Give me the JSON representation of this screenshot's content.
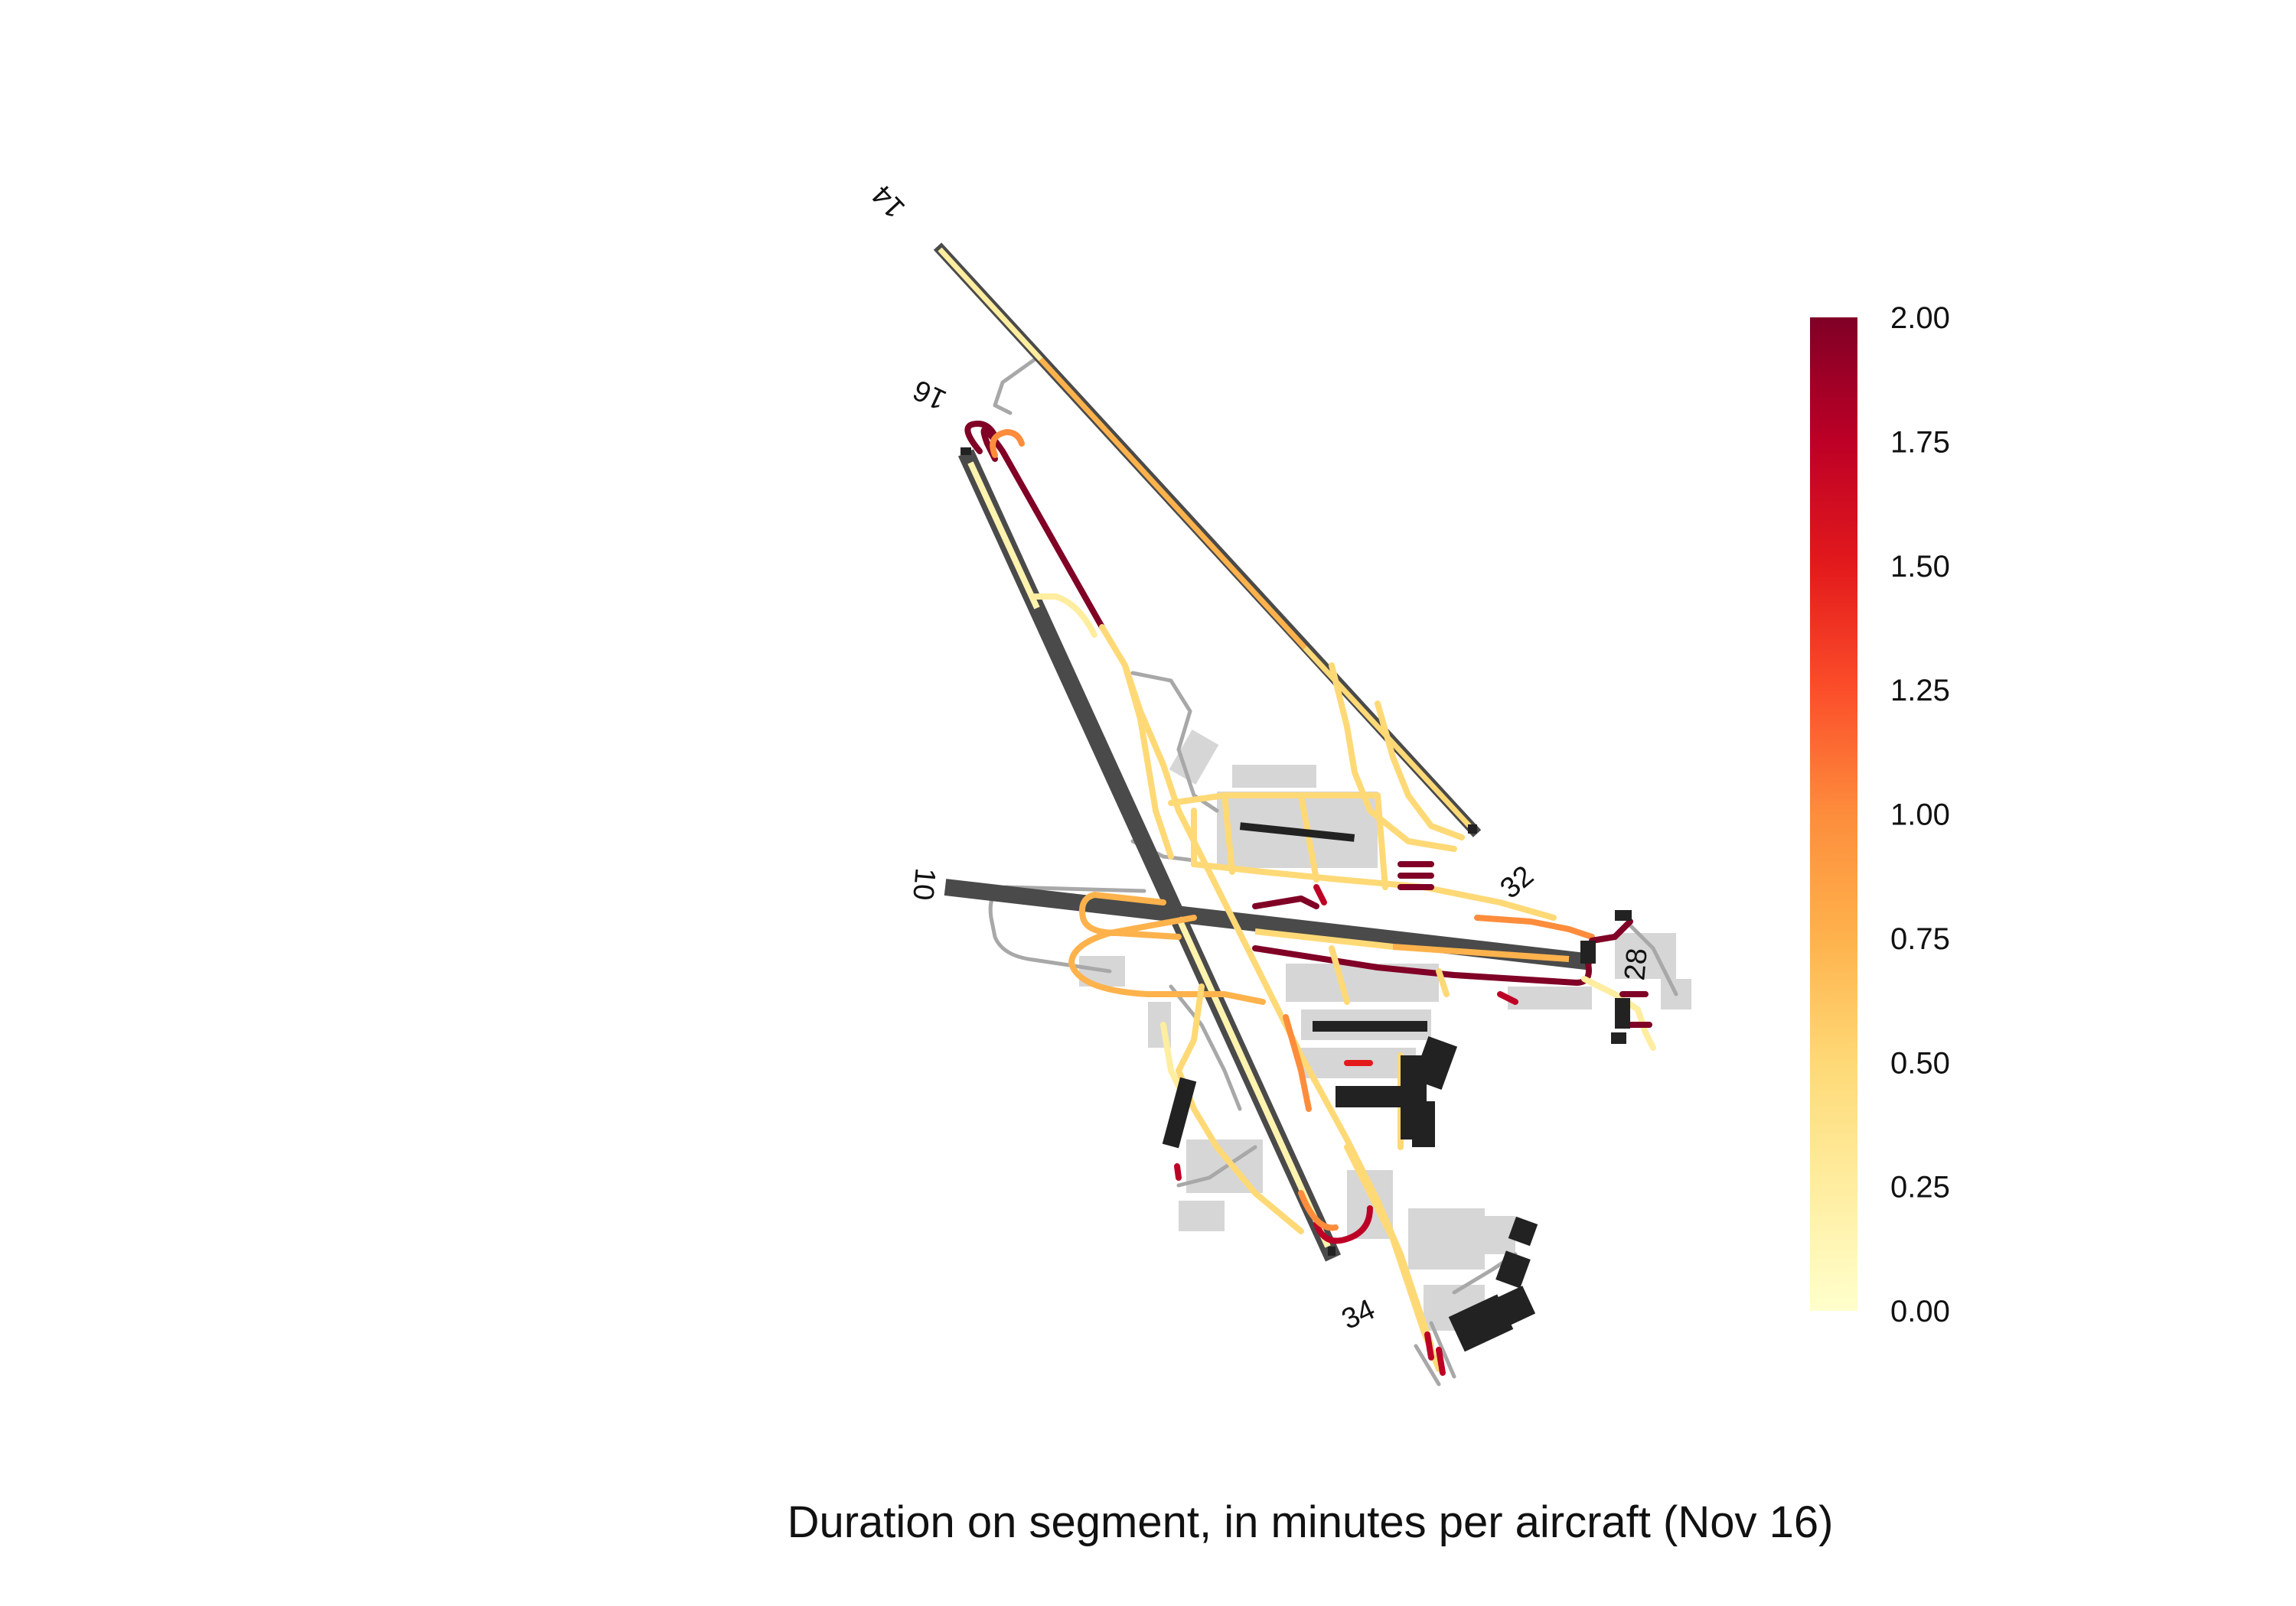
{
  "caption": "Duration on segment, in minutes per aircraft (Nov 16)",
  "runway_labels": {
    "r14": "14",
    "r16": "16",
    "r10": "10",
    "r32": "32",
    "r28": "28",
    "r34": "34"
  },
  "colorbar": {
    "min": 0.0,
    "max": 2.0,
    "ticks": [
      "0.00",
      "0.25",
      "0.50",
      "0.75",
      "1.00",
      "1.25",
      "1.50",
      "1.75",
      "2.00"
    ],
    "colormap": [
      "#ffffcc",
      "#ffeda0",
      "#fed976",
      "#feb24c",
      "#fd8d3c",
      "#fc4e2a",
      "#e31a1c",
      "#bd0026",
      "#800026"
    ]
  },
  "colors": {
    "runway": "#4a4a4a",
    "building": "#222222",
    "apron": "#d6d6d6",
    "unused_taxiway": "#a8a8a8"
  }
}
